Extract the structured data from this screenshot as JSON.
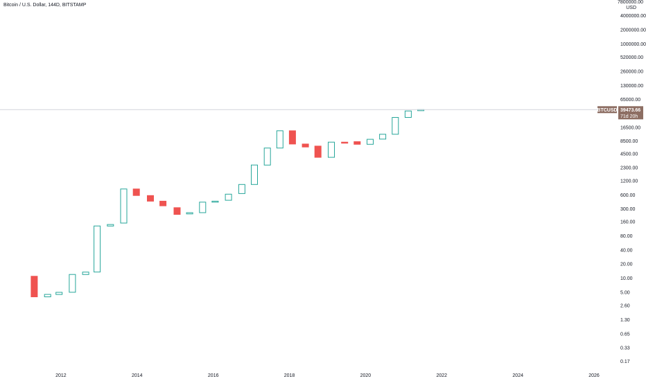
{
  "chart_data": {
    "type": "candlestick",
    "title": "Bitcoin / U.S. Dollar, 144D, BITSTAMP",
    "xlabel": "",
    "ylabel": "",
    "yscale": "log",
    "ylim": [
      0.14,
      7800000
    ],
    "xlim": [
      2010.4,
      2026.6
    ],
    "y_top_label": "7800000.00",
    "y_currency_label": "USD",
    "grid": false,
    "colors": {
      "up": "#26a69a",
      "down": "#ef5350",
      "price_line": "#d1d4dc",
      "price_badge": "#8d6e63",
      "text": "#131722"
    },
    "y_ticks": [
      {
        "value": 4000000,
        "label": "4000000.00"
      },
      {
        "value": 2000000,
        "label": "2000000.00"
      },
      {
        "value": 1000000,
        "label": "1000000.00"
      },
      {
        "value": 520000,
        "label": "520000.00"
      },
      {
        "value": 260000,
        "label": "260000.00"
      },
      {
        "value": 130000,
        "label": "130000.00"
      },
      {
        "value": 65000,
        "label": "65000.00"
      },
      {
        "value": 16500,
        "label": "16500.00"
      },
      {
        "value": 8500,
        "label": "8500.00"
      },
      {
        "value": 4500,
        "label": "4500.00"
      },
      {
        "value": 2300,
        "label": "2300.00"
      },
      {
        "value": 1200,
        "label": "1200.00"
      },
      {
        "value": 600,
        "label": "600.00"
      },
      {
        "value": 300,
        "label": "300.00"
      },
      {
        "value": 160,
        "label": "160.00"
      },
      {
        "value": 80,
        "label": "80.00"
      },
      {
        "value": 40,
        "label": "40.00"
      },
      {
        "value": 20,
        "label": "20.00"
      },
      {
        "value": 10,
        "label": "10.00"
      },
      {
        "value": 5,
        "label": "5.00"
      },
      {
        "value": 2.6,
        "label": "2.60"
      },
      {
        "value": 1.3,
        "label": "1.30"
      },
      {
        "value": 0.65,
        "label": "0.65"
      },
      {
        "value": 0.33,
        "label": "0.33"
      },
      {
        "value": 0.17,
        "label": "0.17"
      }
    ],
    "x_ticks": [
      {
        "value": 2012,
        "label": "2012"
      },
      {
        "value": 2014,
        "label": "2014"
      },
      {
        "value": 2016,
        "label": "2016"
      },
      {
        "value": 2018,
        "label": "2018"
      },
      {
        "value": 2020,
        "label": "2020"
      },
      {
        "value": 2022,
        "label": "2022"
      },
      {
        "value": 2024,
        "label": "2024"
      },
      {
        "value": 2026,
        "label": "2026"
      }
    ],
    "candles": [
      {
        "x": 2011.3,
        "open": 11,
        "close": 4
      },
      {
        "x": 2011.65,
        "open": 4,
        "close": 4.5
      },
      {
        "x": 2011.95,
        "open": 4.5,
        "close": 5
      },
      {
        "x": 2012.3,
        "open": 5,
        "close": 12
      },
      {
        "x": 2012.65,
        "open": 12,
        "close": 13.5
      },
      {
        "x": 2012.95,
        "open": 13.5,
        "close": 130
      },
      {
        "x": 2013.3,
        "open": 130,
        "close": 140
      },
      {
        "x": 2013.65,
        "open": 150,
        "close": 800
      },
      {
        "x": 2013.98,
        "open": 800,
        "close": 580
      },
      {
        "x": 2014.35,
        "open": 580,
        "close": 440
      },
      {
        "x": 2014.68,
        "open": 440,
        "close": 350
      },
      {
        "x": 2015.05,
        "open": 320,
        "close": 230
      },
      {
        "x": 2015.38,
        "open": 235,
        "close": 250
      },
      {
        "x": 2015.72,
        "open": 250,
        "close": 420
      },
      {
        "x": 2016.05,
        "open": 420,
        "close": 440
      },
      {
        "x": 2016.4,
        "open": 460,
        "close": 620
      },
      {
        "x": 2016.75,
        "open": 640,
        "close": 1000
      },
      {
        "x": 2017.08,
        "open": 1000,
        "close": 2600
      },
      {
        "x": 2017.42,
        "open": 2600,
        "close": 6000
      },
      {
        "x": 2017.75,
        "open": 6000,
        "close": 14000
      },
      {
        "x": 2018.08,
        "open": 14000,
        "close": 7300
      },
      {
        "x": 2018.42,
        "open": 7300,
        "close": 6300
      },
      {
        "x": 2018.75,
        "open": 6600,
        "close": 3800
      },
      {
        "x": 2019.1,
        "open": 3800,
        "close": 8000
      },
      {
        "x": 2019.45,
        "open": 8000,
        "close": 7800
      },
      {
        "x": 2019.78,
        "open": 8200,
        "close": 7200
      },
      {
        "x": 2020.12,
        "open": 7200,
        "close": 9200
      },
      {
        "x": 2020.45,
        "open": 9300,
        "close": 11800
      },
      {
        "x": 2020.78,
        "open": 11800,
        "close": 27000
      },
      {
        "x": 2021.12,
        "open": 27000,
        "close": 37000
      },
      {
        "x": 2021.45,
        "open": 37500,
        "close": 39473.66
      }
    ],
    "last_price": {
      "value": 39473.66,
      "symbol": "BTCUSD",
      "price_label": "39473.66",
      "countdown": "71d 20h"
    }
  }
}
